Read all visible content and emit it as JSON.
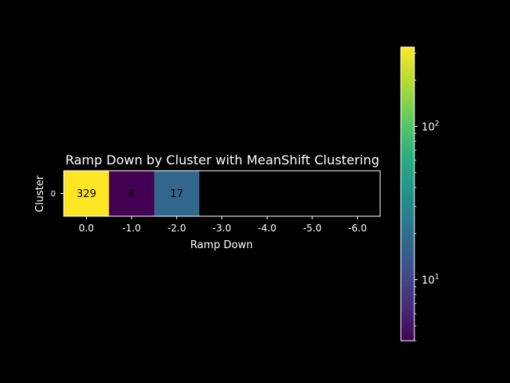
{
  "chart_data": {
    "type": "heatmap",
    "title": "Ramp Down by Cluster with MeanShift Clustering",
    "xlabel": "Ramp Down",
    "ylabel": "Cluster",
    "x_categories": [
      "0.0",
      "-1.0",
      "-2.0",
      "-3.0",
      "-4.0",
      "-5.0",
      "-6.0"
    ],
    "y_categories": [
      "0"
    ],
    "values": [
      [
        329,
        4,
        17,
        null,
        null,
        null,
        null
      ]
    ],
    "cell_labels": [
      [
        "329",
        "4",
        "17",
        "",
        "",
        "",
        ""
      ]
    ],
    "colorbar": {
      "scale": "log",
      "colormap": "viridis",
      "range": [
        4,
        329
      ],
      "tick_values": [
        10,
        100
      ],
      "tick_base": "10",
      "tick_exponents": [
        "1",
        "2"
      ]
    },
    "colors": {
      "background": "#000000",
      "foreground": "#ffffff",
      "annotation_text": "#000000",
      "missing_cell": "#000000"
    }
  }
}
